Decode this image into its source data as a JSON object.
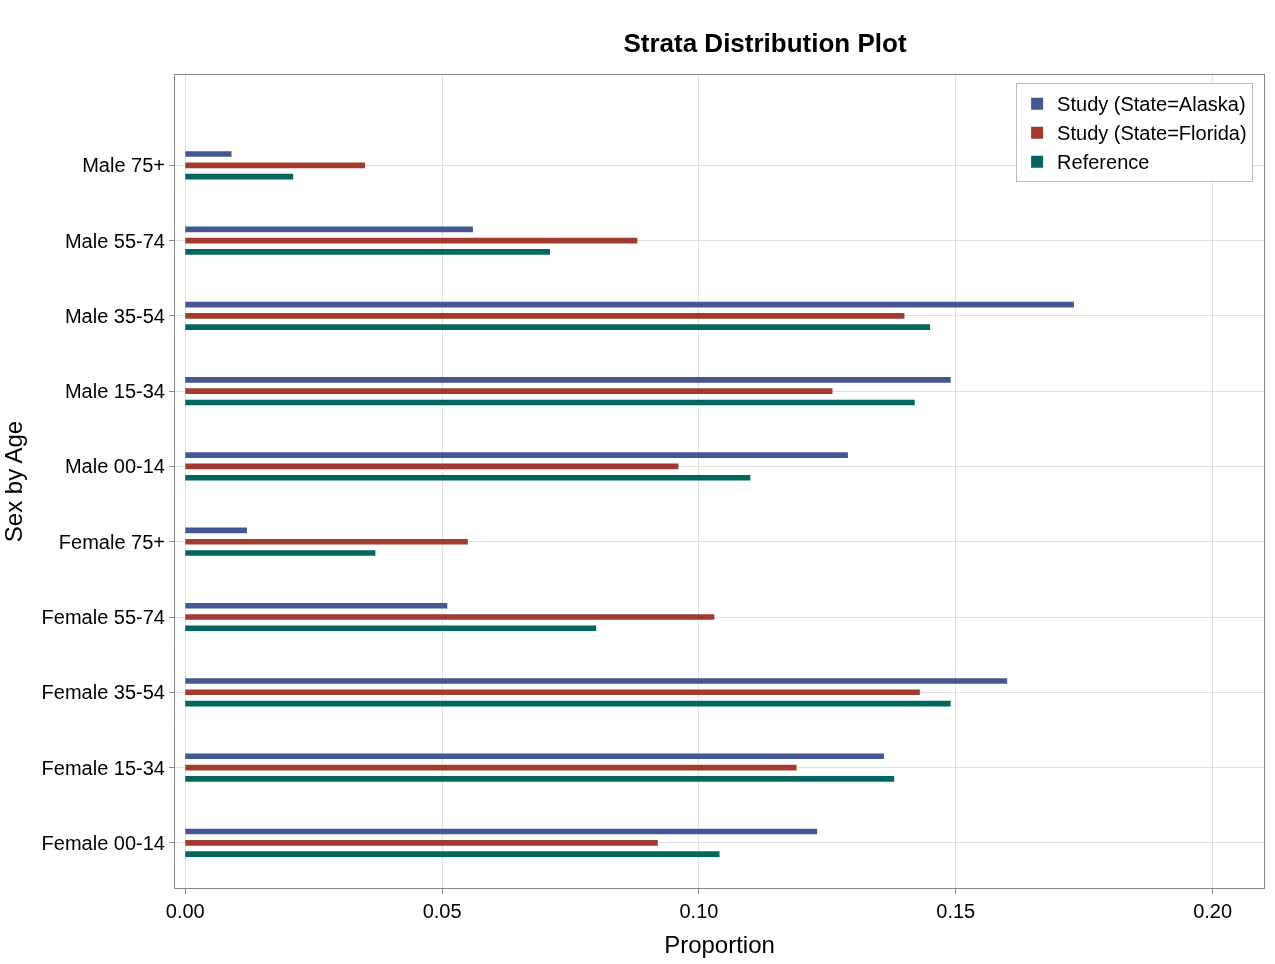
{
  "chart_data": {
    "type": "bar",
    "orientation": "horizontal",
    "title": "Strata Distribution Plot",
    "xlabel": "Proportion",
    "ylabel": "Sex by Age",
    "categories": [
      "Male 75+",
      "Male 55-74",
      "Male 35-54",
      "Male 15-34",
      "Male 00-14",
      "Female 75+",
      "Female 55-74",
      "Female 35-54",
      "Female 15-34",
      "Female 00-14"
    ],
    "series": [
      {
        "name": "Study (State=Alaska)",
        "color": "#445694",
        "values": [
          0.009,
          0.056,
          0.173,
          0.149,
          0.129,
          0.012,
          0.051,
          0.16,
          0.136,
          0.123
        ]
      },
      {
        "name": "Study (State=Florida)",
        "color": "#a23a2e",
        "values": [
          0.035,
          0.088,
          0.14,
          0.126,
          0.096,
          0.055,
          0.103,
          0.143,
          0.119,
          0.092
        ]
      },
      {
        "name": "Reference",
        "color": "#01665e",
        "values": [
          0.021,
          0.071,
          0.145,
          0.142,
          0.11,
          0.037,
          0.08,
          0.149,
          0.138,
          0.104
        ]
      }
    ],
    "xlim": [
      -0.002,
      0.21
    ],
    "xticks": [
      {
        "value": 0,
        "label": "0.00"
      },
      {
        "value": 0.05,
        "label": "0.05"
      },
      {
        "value": 0.1,
        "label": "0.10"
      },
      {
        "value": 0.15,
        "label": "0.15"
      },
      {
        "value": 0.2,
        "label": "0.20"
      }
    ],
    "grid": true,
    "legend": "top right"
  }
}
